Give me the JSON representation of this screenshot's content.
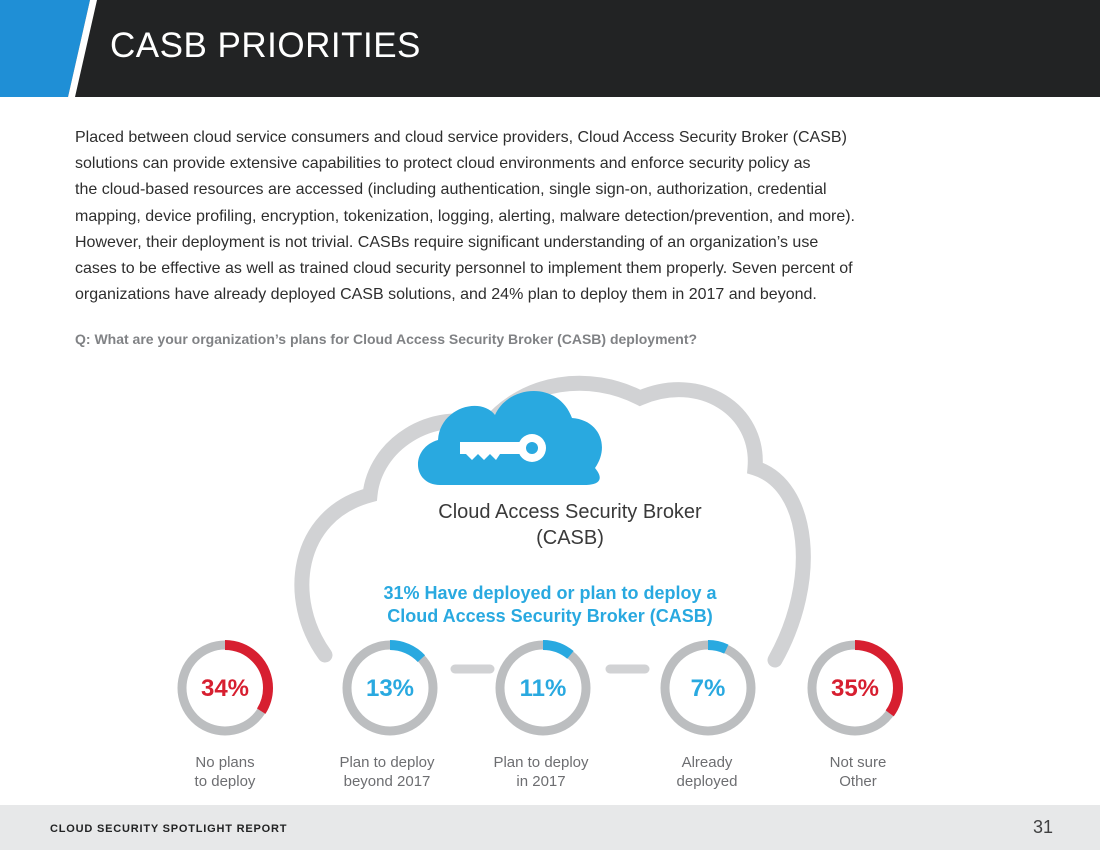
{
  "header": {
    "title": "CASB PRIORITIES"
  },
  "intro": {
    "lines": [
      "Placed between cloud service consumers and cloud service providers, Cloud Access Security Broker (CASB)",
      "solutions can provide extensive capabilities to protect cloud environments and enforce security policy as",
      "the cloud-based resources are accessed (including authentication, single sign-on, authorization, credential",
      "mapping, device profiling, encryption, tokenization, logging, alerting, malware detection/prevention, and more).",
      "However, their deployment is not trivial. CASBs require significant understanding of an organization’s use",
      "cases to be effective as well as trained cloud security personnel to implement them properly. Seven percent of",
      "organizations have already deployed CASB solutions, and 24% plan to deploy them in 2017 and beyond."
    ]
  },
  "question": "Q: What are your organization’s plans for Cloud Access Security Broker (CASB) deployment?",
  "cloud": {
    "caption_line1": "Cloud Access Security Broker",
    "caption_line2": "(CASB)",
    "callout_line1": "31% Have deployed or plan to deploy a",
    "callout_line2": "Cloud Access Security Broker (CASB)"
  },
  "colors": {
    "red": "#d71f30",
    "blue": "#29a9e0",
    "gray": "#bcbec0",
    "dark": "#222324"
  },
  "chart_data": {
    "type": "pie",
    "title": "Q: What are your organization’s plans for Cloud Access Security Broker (CASB) deployment?",
    "series": [
      {
        "label": "34%",
        "value": 34,
        "line1": "No plans",
        "line2": "to deploy",
        "color": "#d71f30"
      },
      {
        "label": "13%",
        "value": 13,
        "line1": "Plan to deploy",
        "line2": "beyond 2017",
        "color": "#29a9e0"
      },
      {
        "label": "11%",
        "value": 11,
        "line1": "Plan to deploy",
        "line2": "in 2017",
        "color": "#29a9e0"
      },
      {
        "label": "7%",
        "value": 7,
        "line1": "Already",
        "line2": "deployed",
        "color": "#29a9e0"
      },
      {
        "label": "35%",
        "value": 35,
        "line1": "Not sure",
        "line2": "Other",
        "color": "#d71f30"
      }
    ]
  },
  "footer": {
    "report": "CLOUD SECURITY SPOTLIGHT REPORT",
    "page": "31"
  }
}
